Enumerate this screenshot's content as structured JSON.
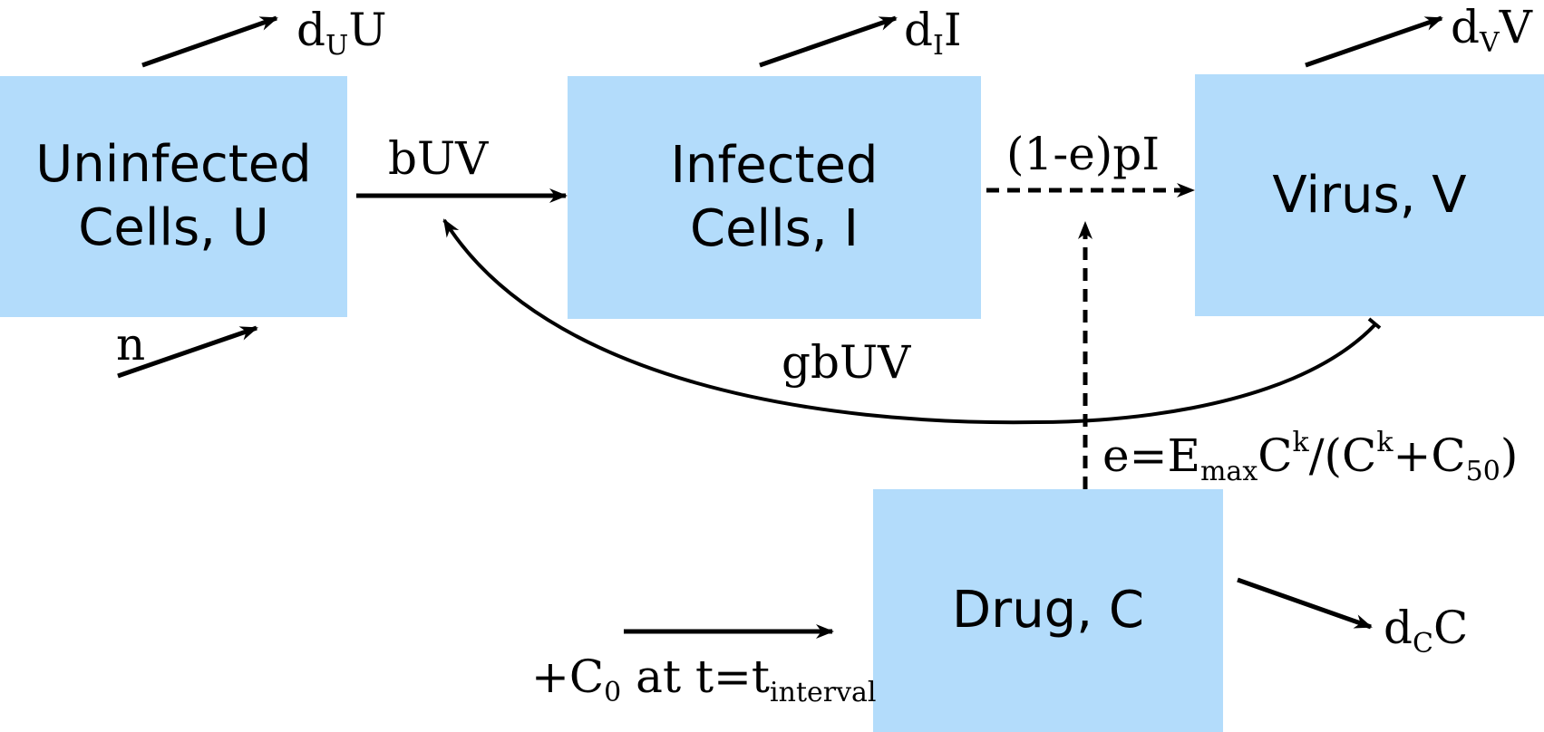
{
  "boxes": {
    "uninfected": {
      "line1": "Uninfected",
      "line2": "Cells, U"
    },
    "infected": {
      "line1": "Infected",
      "line2": "Cells, I"
    },
    "virus": {
      "line1": "Virus, V"
    },
    "drug": {
      "line1": "Drug, C"
    }
  },
  "labels": {
    "death_u": {
      "base": "d",
      "sub": "U",
      "tail": "U"
    },
    "death_i": {
      "base": "d",
      "sub": "I",
      "tail": "I"
    },
    "death_v": {
      "base": "d",
      "sub": "V",
      "tail": "V"
    },
    "death_c": {
      "base": "d",
      "sub": "C",
      "tail": "C"
    },
    "infection": "bUV",
    "production": "(1-e)pI",
    "source": "n",
    "loss": "gbUV",
    "efficacy": {
      "part1": "e=E",
      "sub1": "max",
      "part2": "C",
      "sup1": "k",
      "part3": "/(C",
      "sup2": "k",
      "part4": "+C",
      "sub2": "50",
      "part5": ")"
    },
    "dosing": {
      "part1": "+C",
      "sub1": "0",
      "part2": " at t=t",
      "sub2": "interval"
    }
  },
  "colors": {
    "box_fill": "#b3dcfb",
    "arrow": "#000000"
  }
}
